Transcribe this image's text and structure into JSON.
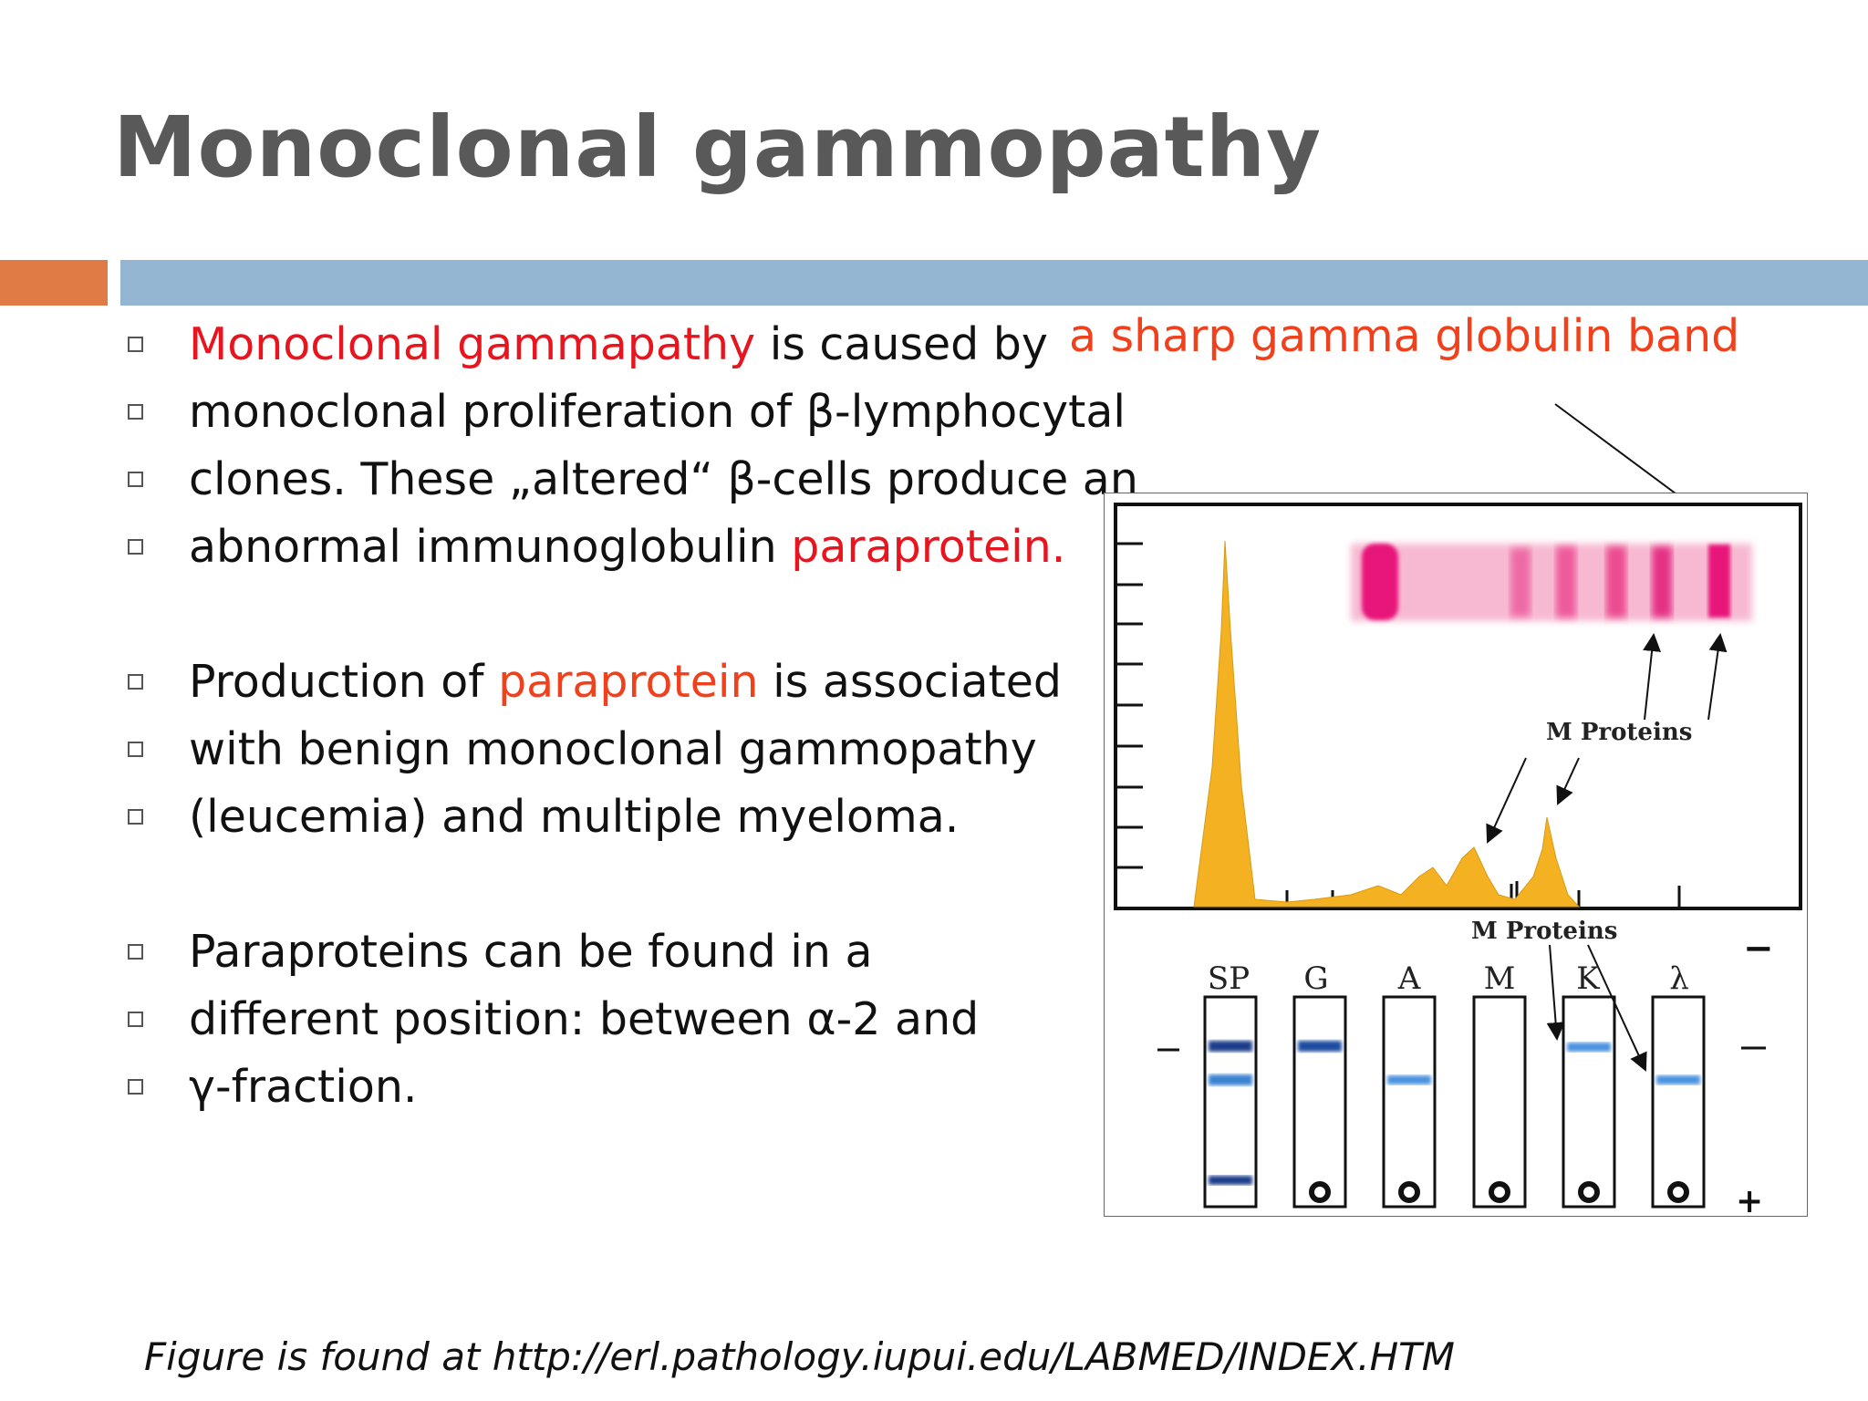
{
  "title": "Monoclonal  gammopathy",
  "colors": {
    "accent_orange": "#E07B45",
    "accent_blue": "#94B6D2",
    "highlight_red": "#E8141E",
    "highlight_orange": "#F0401C",
    "peak_fill": "#F4B223",
    "band_pink": "#E8177A",
    "band_blue": "#3A82D0"
  },
  "bullets": [
    {
      "parts": [
        "Monoclonal gammapathy",
        " is caused by"
      ]
    },
    {
      "parts": [
        "monoclonal proliferation of β-lymphocytal"
      ]
    },
    {
      "parts": [
        "clones. These „altered“ β-cells produce an"
      ]
    },
    {
      "parts": [
        "abnormal immunoglobulin ",
        "paraprotein."
      ]
    },
    {
      "parts": [
        "Production of ",
        "paraprotein",
        " is associated"
      ]
    },
    {
      "parts": [
        "with benign monoclonal gammopathy"
      ]
    },
    {
      "parts": [
        "(leucemia) and multiple myeloma."
      ]
    },
    {
      "parts": [
        "Paraproteins can be found in a"
      ]
    },
    {
      "parts": [
        "different position: between α-2 and"
      ]
    },
    {
      "parts": [
        "γ-fraction."
      ]
    }
  ],
  "callout": "a sharp gamma globulin band",
  "figure": {
    "m_proteins_label_1": "M Proteins",
    "m_proteins_label_2": "M Proteins",
    "lanes": [
      "SP",
      "G",
      "A",
      "M",
      "K",
      "λ"
    ],
    "minus_sign": "−",
    "plus_sign": "+"
  },
  "footer": "Figure is found at http://erl.pathology.iupui.edu/LABMED/INDEX.HTM"
}
